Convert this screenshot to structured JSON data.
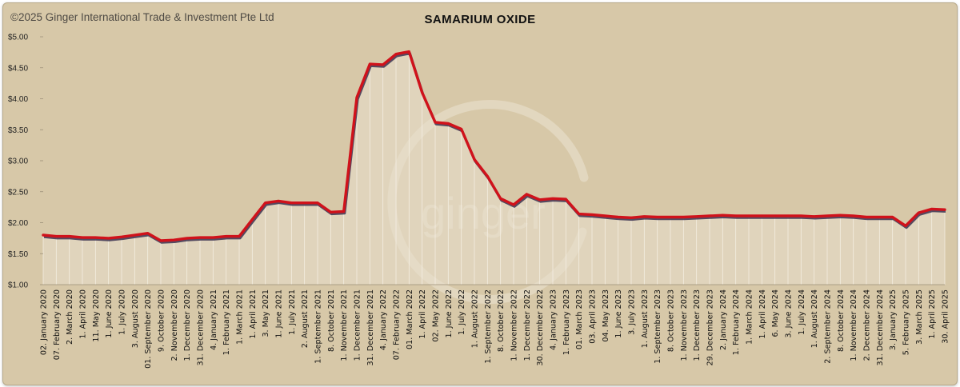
{
  "header": {
    "copyright": "©2025 Ginger International Trade & Investment Pte Ltd",
    "watermark": "ginger"
  },
  "colors": {
    "background": "#d7c8a8",
    "line": "#d0121b",
    "line_shadow": "#3b3150",
    "area": "#e8dfcc"
  },
  "chart_data": {
    "type": "line",
    "title": "SAMARIUM OXIDE",
    "xlabel": "",
    "ylabel": "",
    "ylim": [
      1.0,
      5.0
    ],
    "yticks": [
      "$1.00",
      "$1.50",
      "$2.00",
      "$2.50",
      "$3.00",
      "$3.50",
      "$4.00",
      "$4.50",
      "$5.00"
    ],
    "grid": false,
    "legend": "none",
    "categories": [
      "02. January 2020",
      "07. February 2020",
      "2. March 2020",
      "1. April 2020",
      "11. May 2020",
      "1. June 2020",
      "1. July 2020",
      "3. August 2020",
      "01. September 2020",
      "9. October 2020",
      "2. November 2020",
      "1. December 2020",
      "31. December 2020",
      "4. January 2021",
      "1. February 2021",
      "1. March 2021",
      "1. April 2021",
      "3. May 2021",
      "1. June 2021",
      "1. July 2021",
      "2. August 2021",
      "1. September 2021",
      "8. October 2021",
      "1. November 2021",
      "1. December 2021",
      "31. December 2021",
      "4. January 2022",
      "07. February 2022",
      "01. March 2022",
      "1. April 2022",
      "02. May 2022",
      "1. June 2022",
      "1. July 2022",
      "1. August 2022",
      "1. September 2022",
      "8. October 2022",
      "1. November 2022",
      "1. December 2022",
      "30. December 2022",
      "4. January 2023",
      "1. February 2023",
      "01. March 2023",
      "03. April 2023",
      "04. May 2023",
      "1. June 2023",
      "3. July 2023",
      "1. August 2023",
      "1. September 2023",
      "8. October 2023",
      "1. November 2023",
      "1. December 2023",
      "29. December 2023",
      "2. January 2024",
      "1. February 2024",
      "1. March 2024",
      "1. April 2024",
      "6. May 2024",
      "3. June 2024",
      "1. July 2024",
      "1. August 2024",
      "2. September 2024",
      "8. October 2024",
      "1. November 2024",
      "2. December 2024",
      "31. December 2024",
      "3. January 2025",
      "5. February 2025",
      "3. March 2025",
      "1. April 2025",
      "30. April 2025"
    ],
    "series": [
      {
        "values": [
          1.8,
          1.78,
          1.78,
          1.76,
          1.76,
          1.75,
          1.77,
          1.8,
          1.83,
          1.71,
          1.72,
          1.75,
          1.76,
          1.76,
          1.78,
          1.78,
          2.05,
          2.32,
          2.35,
          2.32,
          2.32,
          2.32,
          2.17,
          2.18,
          4.02,
          4.56,
          4.55,
          4.72,
          4.76,
          4.1,
          3.62,
          3.6,
          3.51,
          3.02,
          2.75,
          2.39,
          2.29,
          2.46,
          2.37,
          2.39,
          2.38,
          2.14,
          2.13,
          2.11,
          2.09,
          2.08,
          2.1,
          2.09,
          2.09,
          2.09,
          2.1,
          2.11,
          2.12,
          2.11,
          2.11,
          2.11,
          2.11,
          2.11,
          2.11,
          2.1,
          2.11,
          2.12,
          2.11,
          2.09,
          2.09,
          2.09,
          1.95,
          2.16,
          2.22,
          2.21
        ]
      }
    ]
  }
}
